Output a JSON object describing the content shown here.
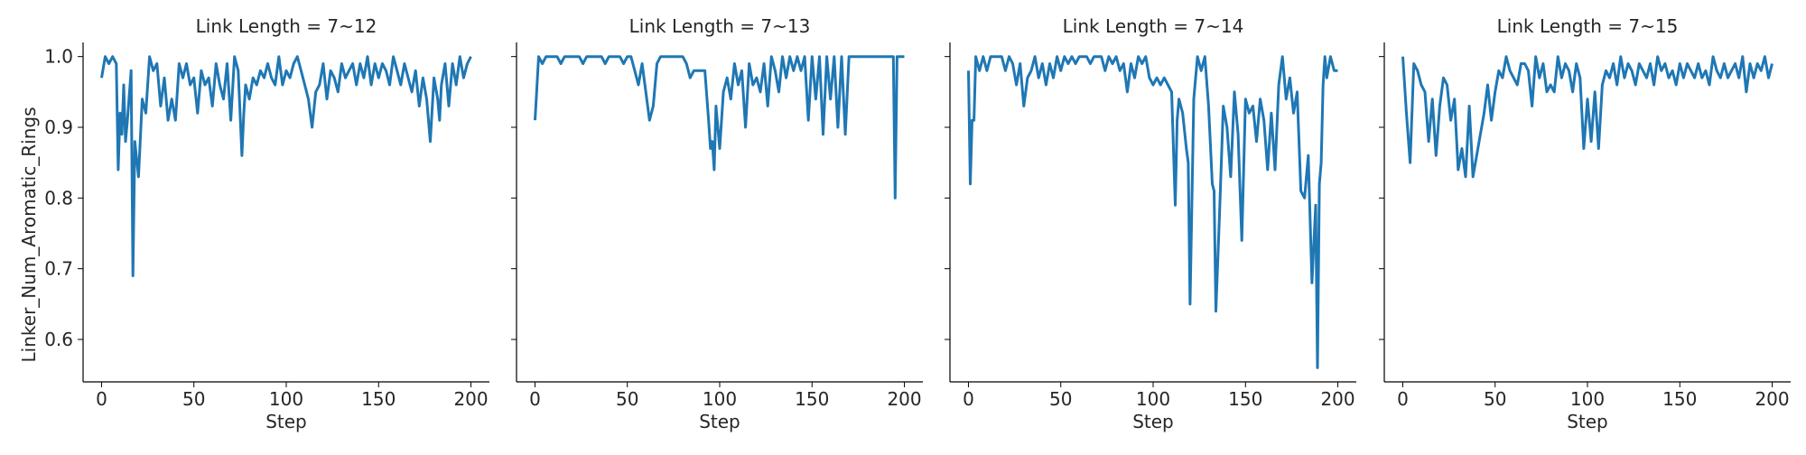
{
  "chart_data": [
    {
      "type": "line",
      "title": "Link Length = 7~12",
      "xlabel": "Step",
      "ylabel": "Linker_Num_Aromatic_Rings",
      "xlim": [
        -10,
        210
      ],
      "ylim": [
        0.54,
        1.02
      ],
      "xticks": [
        0,
        50,
        100,
        150,
        200
      ],
      "yticks": [
        0.6,
        0.7,
        0.8,
        0.9,
        1.0
      ],
      "series": [
        {
          "x": [
            0,
            2,
            4,
            6,
            8,
            9,
            10,
            11,
            12,
            13,
            14,
            16,
            17,
            18,
            20,
            22,
            24,
            26,
            28,
            30,
            32,
            34,
            36,
            38,
            40,
            42,
            44,
            46,
            48,
            50,
            52,
            54,
            56,
            58,
            60,
            62,
            64,
            66,
            68,
            70,
            72,
            74,
            76,
            77,
            78,
            80,
            82,
            84,
            86,
            88,
            90,
            92,
            94,
            96,
            98,
            100,
            102,
            104,
            106,
            108,
            110,
            112,
            114,
            116,
            118,
            120,
            122,
            124,
            126,
            128,
            130,
            132,
            134,
            136,
            138,
            140,
            142,
            144,
            146,
            148,
            150,
            152,
            154,
            156,
            158,
            160,
            162,
            164,
            166,
            168,
            170,
            172,
            174,
            176,
            178,
            180,
            182,
            183,
            184,
            186,
            188,
            190,
            192,
            194,
            196,
            198,
            200
          ],
          "values": [
            0.97,
            1.0,
            0.99,
            1.0,
            0.99,
            0.84,
            0.92,
            0.89,
            0.96,
            0.88,
            0.91,
            0.98,
            0.69,
            0.88,
            0.83,
            0.94,
            0.92,
            1.0,
            0.98,
            0.99,
            0.93,
            0.97,
            0.91,
            0.94,
            0.91,
            0.99,
            0.97,
            0.99,
            0.96,
            0.97,
            0.92,
            0.98,
            0.96,
            0.97,
            0.93,
            0.99,
            0.96,
            0.94,
            0.99,
            0.91,
            1.0,
            0.98,
            0.86,
            0.92,
            0.96,
            0.94,
            0.97,
            0.96,
            0.98,
            0.97,
            0.99,
            0.97,
            0.96,
            1.0,
            0.96,
            0.98,
            0.97,
            0.99,
            1.0,
            0.98,
            0.96,
            0.94,
            0.9,
            0.95,
            0.96,
            0.99,
            0.94,
            0.98,
            0.97,
            0.95,
            0.99,
            0.97,
            0.98,
            0.99,
            0.96,
            0.99,
            0.97,
            1.0,
            0.96,
            0.99,
            0.97,
            0.99,
            0.98,
            0.96,
            1.0,
            0.98,
            0.96,
            0.99,
            0.97,
            0.95,
            0.98,
            0.93,
            0.97,
            0.94,
            0.88,
            0.97,
            0.94,
            0.91,
            0.96,
            0.99,
            0.93,
            0.99,
            0.96,
            1.0,
            0.97,
            0.99,
            1.0
          ],
          "color": "#1f77b4"
        }
      ]
    },
    {
      "type": "line",
      "title": "Link Length = 7~13",
      "xlabel": "Step",
      "ylabel": "",
      "xlim": [
        -10,
        210
      ],
      "ylim": [
        0.54,
        1.02
      ],
      "xticks": [
        0,
        50,
        100,
        150,
        200
      ],
      "yticks": [
        0.6,
        0.7,
        0.8,
        0.9,
        1.0
      ],
      "series": [
        {
          "x": [
            0,
            2,
            4,
            6,
            8,
            10,
            12,
            14,
            16,
            18,
            20,
            22,
            24,
            26,
            28,
            30,
            32,
            34,
            36,
            38,
            40,
            42,
            44,
            46,
            48,
            50,
            52,
            54,
            56,
            58,
            60,
            62,
            64,
            66,
            68,
            70,
            72,
            74,
            76,
            78,
            80,
            82,
            84,
            86,
            88,
            90,
            92,
            94,
            95,
            96,
            97,
            98,
            100,
            102,
            104,
            106,
            108,
            110,
            112,
            114,
            116,
            118,
            120,
            122,
            124,
            126,
            128,
            130,
            132,
            134,
            136,
            138,
            140,
            142,
            144,
            146,
            148,
            150,
            152,
            154,
            156,
            158,
            160,
            162,
            164,
            166,
            168,
            170,
            172,
            174,
            176,
            178,
            180,
            182,
            184,
            186,
            188,
            190,
            192,
            194,
            195,
            196,
            198,
            200
          ],
          "values": [
            0.91,
            1.0,
            0.99,
            1.0,
            1.0,
            1.0,
            1.0,
            0.99,
            1.0,
            1.0,
            1.0,
            1.0,
            1.0,
            0.99,
            1.0,
            1.0,
            1.0,
            1.0,
            1.0,
            0.99,
            1.0,
            1.0,
            1.0,
            1.0,
            0.99,
            1.0,
            1.0,
            0.98,
            0.96,
            0.99,
            0.95,
            0.91,
            0.93,
            0.99,
            1.0,
            1.0,
            1.0,
            1.0,
            1.0,
            1.0,
            1.0,
            0.99,
            0.97,
            0.98,
            0.98,
            0.98,
            0.98,
            0.91,
            0.87,
            0.88,
            0.84,
            0.93,
            0.87,
            0.95,
            0.97,
            0.94,
            0.99,
            0.96,
            0.98,
            0.9,
            0.99,
            0.96,
            0.97,
            0.95,
            0.99,
            0.93,
            1.0,
            0.98,
            0.95,
            1.0,
            0.97,
            1.0,
            0.98,
            1.0,
            0.98,
            1.0,
            0.91,
            1.0,
            0.94,
            1.0,
            0.89,
            1.0,
            0.94,
            1.0,
            0.9,
            1.0,
            0.89,
            1.0,
            1.0,
            1.0,
            1.0,
            1.0,
            1.0,
            1.0,
            1.0,
            1.0,
            1.0,
            1.0,
            1.0,
            1.0,
            0.8,
            1.0,
            1.0,
            1.0
          ],
          "color": "#1f77b4"
        }
      ]
    },
    {
      "type": "line",
      "title": "Link Length = 7~14",
      "xlabel": "Step",
      "ylabel": "",
      "xlim": [
        -10,
        210
      ],
      "ylim": [
        0.54,
        1.02
      ],
      "xticks": [
        0,
        50,
        100,
        150,
        200
      ],
      "yticks": [
        0.6,
        0.7,
        0.8,
        0.9,
        1.0
      ],
      "series": [
        {
          "x": [
            0,
            1,
            2,
            3,
            4,
            6,
            8,
            10,
            12,
            14,
            16,
            18,
            20,
            22,
            24,
            26,
            28,
            30,
            32,
            34,
            36,
            38,
            40,
            42,
            44,
            46,
            48,
            50,
            52,
            54,
            56,
            58,
            60,
            62,
            64,
            66,
            68,
            70,
            72,
            74,
            76,
            78,
            80,
            82,
            84,
            86,
            88,
            90,
            92,
            94,
            96,
            98,
            100,
            102,
            104,
            106,
            108,
            110,
            112,
            113,
            114,
            116,
            118,
            119,
            120,
            122,
            124,
            126,
            128,
            130,
            132,
            133,
            134,
            136,
            138,
            140,
            142,
            144,
            146,
            148,
            150,
            152,
            154,
            156,
            158,
            160,
            162,
            164,
            166,
            168,
            170,
            172,
            174,
            176,
            178,
            180,
            182,
            184,
            186,
            188,
            189,
            190,
            191,
            192,
            193,
            194,
            196,
            198,
            200
          ],
          "values": [
            0.98,
            0.82,
            0.91,
            0.91,
            1.0,
            0.98,
            1.0,
            0.98,
            1.0,
            1.0,
            1.0,
            1.0,
            0.98,
            1.0,
            0.99,
            0.96,
            0.99,
            0.93,
            0.97,
            0.98,
            1.0,
            0.97,
            0.99,
            0.96,
            0.99,
            0.97,
            1.0,
            0.98,
            1.0,
            0.99,
            1.0,
            0.99,
            1.0,
            1.0,
            1.0,
            0.99,
            1.0,
            1.0,
            1.0,
            0.98,
            1.0,
            0.99,
            1.0,
            0.98,
            0.99,
            0.95,
            0.99,
            0.97,
            1.0,
            0.99,
            1.0,
            0.97,
            0.96,
            0.97,
            0.96,
            0.97,
            0.96,
            0.95,
            0.79,
            0.91,
            0.94,
            0.92,
            0.87,
            0.85,
            0.65,
            0.94,
            1.0,
            0.98,
            1.0,
            0.93,
            0.82,
            0.81,
            0.64,
            0.78,
            0.93,
            0.9,
            0.83,
            0.95,
            0.89,
            0.74,
            0.94,
            0.92,
            0.93,
            0.88,
            0.94,
            0.91,
            0.84,
            0.92,
            0.84,
            0.96,
            1.0,
            0.94,
            0.97,
            0.92,
            0.95,
            0.81,
            0.8,
            0.86,
            0.68,
            0.79,
            0.56,
            0.82,
            0.85,
            0.96,
            1.0,
            0.97,
            1.0,
            0.98,
            0.98
          ],
          "color": "#1f77b4"
        }
      ]
    },
    {
      "type": "line",
      "title": "Link Length = 7~15",
      "xlabel": "Step",
      "ylabel": "",
      "xlim": [
        -10,
        210
      ],
      "ylim": [
        0.54,
        1.02
      ],
      "xticks": [
        0,
        50,
        100,
        150,
        200
      ],
      "yticks": [
        0.6,
        0.7,
        0.8,
        0.9,
        1.0
      ],
      "series": [
        {
          "x": [
            0,
            2,
            4,
            6,
            8,
            10,
            12,
            14,
            16,
            18,
            20,
            22,
            24,
            26,
            28,
            30,
            32,
            34,
            36,
            38,
            40,
            42,
            44,
            46,
            48,
            50,
            52,
            54,
            56,
            58,
            60,
            62,
            64,
            66,
            68,
            70,
            72,
            74,
            76,
            78,
            80,
            82,
            84,
            86,
            88,
            90,
            92,
            94,
            96,
            98,
            100,
            102,
            104,
            106,
            108,
            110,
            112,
            114,
            116,
            118,
            120,
            122,
            124,
            126,
            128,
            130,
            132,
            134,
            136,
            138,
            140,
            142,
            144,
            146,
            148,
            150,
            152,
            154,
            156,
            158,
            160,
            162,
            164,
            166,
            168,
            170,
            172,
            174,
            176,
            178,
            180,
            182,
            184,
            186,
            188,
            190,
            192,
            194,
            196,
            198,
            200
          ],
          "values": [
            1.0,
            0.92,
            0.85,
            0.99,
            0.98,
            0.96,
            0.95,
            0.88,
            0.94,
            0.86,
            0.93,
            0.97,
            0.96,
            0.91,
            0.94,
            0.84,
            0.87,
            0.83,
            0.93,
            0.83,
            0.86,
            0.89,
            0.92,
            0.96,
            0.91,
            0.95,
            0.98,
            0.97,
            1.0,
            0.98,
            0.97,
            0.96,
            0.99,
            0.99,
            0.98,
            0.93,
            1.0,
            0.97,
            0.99,
            0.95,
            0.96,
            0.95,
            1.0,
            0.97,
            0.99,
            0.98,
            0.95,
            0.99,
            0.97,
            0.87,
            0.94,
            0.88,
            0.95,
            0.87,
            0.96,
            0.98,
            0.97,
            0.99,
            0.96,
            1.0,
            0.97,
            0.99,
            0.98,
            0.96,
            0.99,
            0.98,
            0.97,
            0.99,
            0.96,
            1.0,
            0.98,
            0.99,
            0.97,
            0.98,
            0.96,
            0.99,
            0.97,
            0.99,
            0.98,
            0.97,
            0.99,
            0.97,
            0.98,
            0.96,
            1.0,
            0.98,
            0.97,
            0.99,
            0.97,
            0.98,
            0.99,
            0.97,
            1.0,
            0.95,
            0.99,
            0.97,
            0.99,
            0.98,
            1.0,
            0.97,
            0.99
          ],
          "color": "#1f77b4"
        }
      ]
    }
  ]
}
